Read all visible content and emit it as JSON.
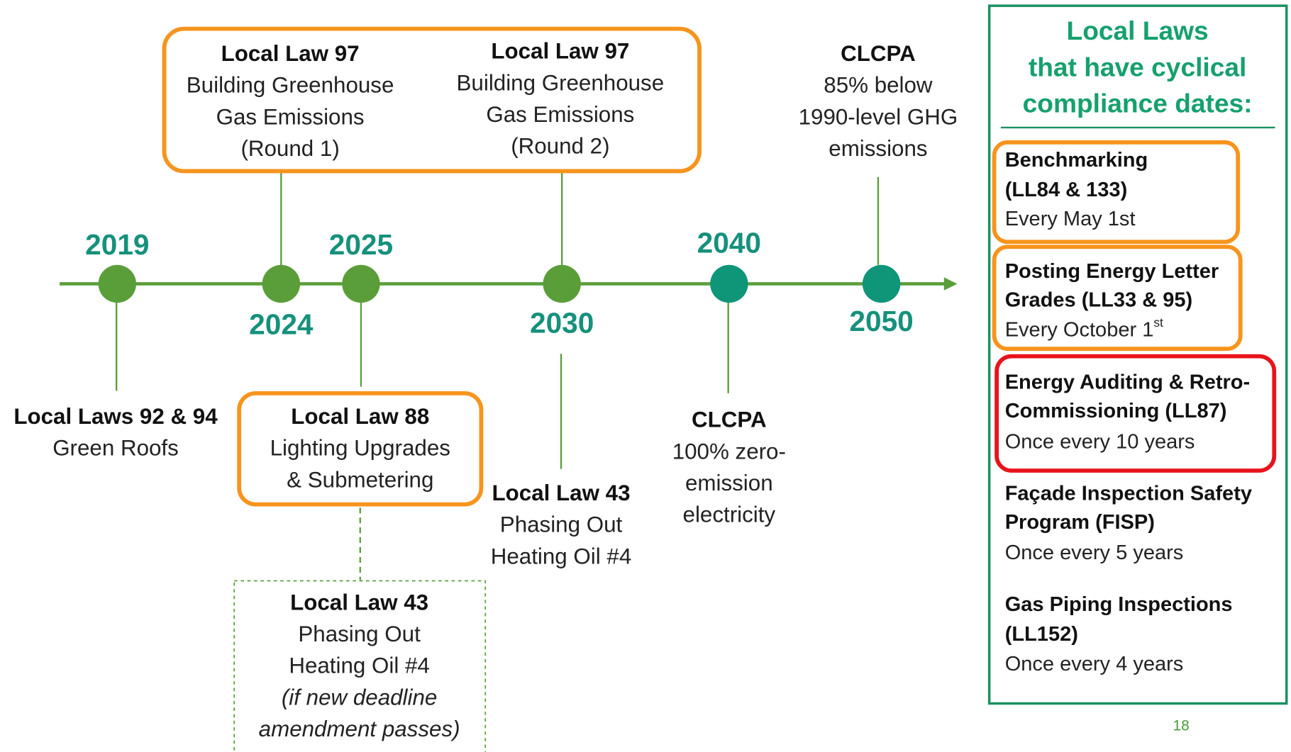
{
  "events": [
    {
      "year": "2019",
      "notes": [
        {
          "title": "Local Laws 92 & 94",
          "lines": [
            "Green Roofs"
          ]
        }
      ]
    },
    {
      "year": "2024",
      "notes": [
        {
          "title": "Local Law 97",
          "lines": [
            "Building Greenhouse",
            "Gas Emissions",
            "(Round 1)"
          ]
        }
      ]
    },
    {
      "year": "2025",
      "notes": [
        {
          "title": "Local Law 88",
          "lines": [
            "Lighting Upgrades",
            "& Submetering"
          ]
        },
        {
          "title": "Local Law 43",
          "lines": [
            "Phasing Out",
            "Heating Oil #4"
          ],
          "condition": [
            "(if new deadline",
            "amendment passes)"
          ]
        }
      ]
    },
    {
      "year": "2030",
      "notes": [
        {
          "title": "Local Law 97",
          "lines": [
            "Building Greenhouse",
            "Gas Emissions",
            "(Round 2)"
          ]
        },
        {
          "title": "Local Law 43",
          "lines": [
            "Phasing Out",
            "Heating Oil #4"
          ]
        }
      ]
    },
    {
      "year": "2040",
      "notes": [
        {
          "title": "CLCPA",
          "lines": [
            "100% zero-",
            "emission",
            "electricity"
          ]
        }
      ]
    },
    {
      "year": "2050",
      "notes": [
        {
          "title": "CLCPA",
          "lines": [
            "85% below",
            "1990-level GHG",
            "emissions"
          ]
        }
      ]
    }
  ],
  "sidebar": {
    "title": [
      "Local Laws",
      "that have cyclical",
      "compliance dates:"
    ],
    "items": [
      {
        "name": [
          "Benchmarking",
          "(LL84 & 133)"
        ],
        "schedule": "Every May 1st"
      },
      {
        "name": [
          "Posting Energy Letter",
          "Grades (LL33 & 95)"
        ],
        "schedule": "Every October 1",
        "schedule_sup": "st"
      },
      {
        "name": [
          "Energy Auditing & Retro-",
          "Commissioning (LL87)"
        ],
        "schedule": "Once every 10 years"
      },
      {
        "name": [
          "Façade Inspection Safety",
          "Program (FISP)"
        ],
        "schedule": "Once every 5 years"
      },
      {
        "name": [
          "Gas Piping Inspections",
          "(LL152)"
        ],
        "schedule": "Once every 4 years"
      }
    ]
  },
  "page_number": "18"
}
